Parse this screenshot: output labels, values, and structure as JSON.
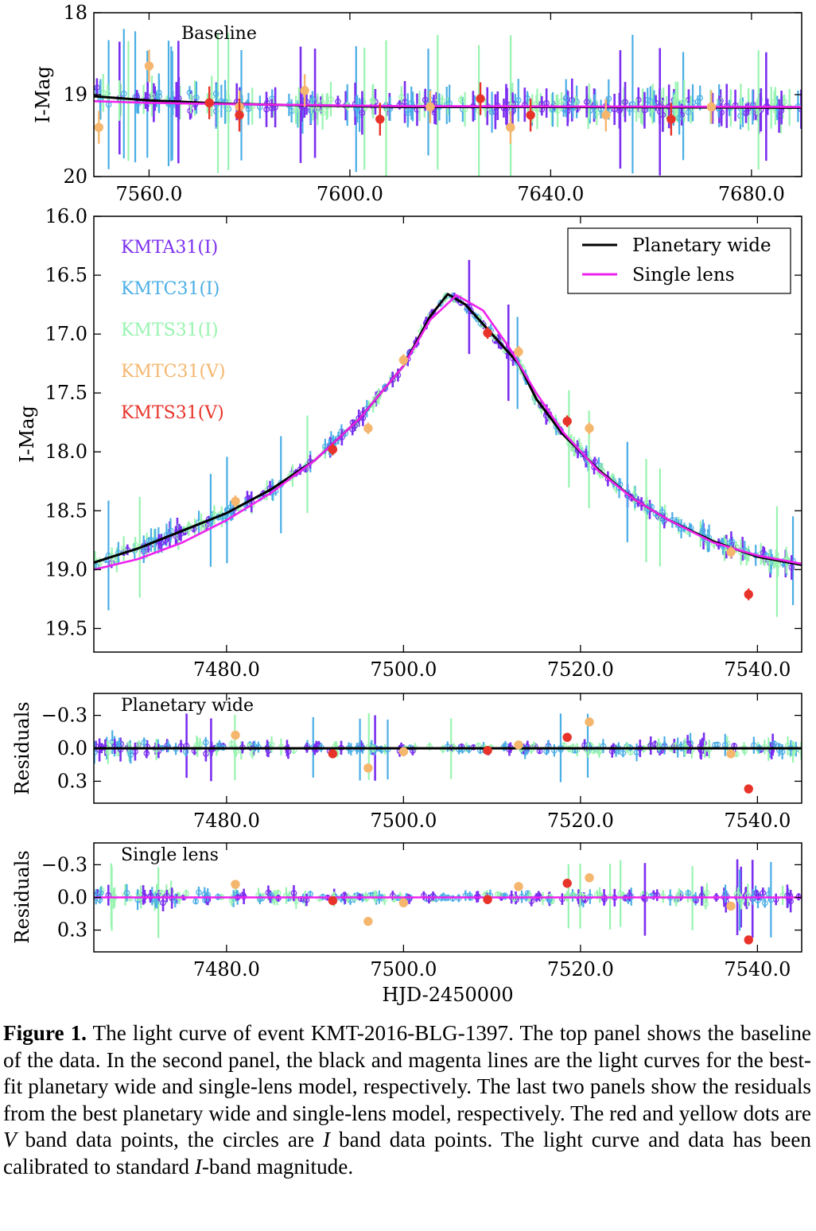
{
  "colors": {
    "KMTA31_I": "#7b2ff0",
    "KMTC31_I": "#4aaee6",
    "KMTS31_I": "#98f4b0",
    "KMTC31_V": "#f5b66e",
    "KMTS31_V": "#e8332a",
    "planetary_wide": "#000000",
    "single_lens": "#ee22ee"
  },
  "chart_data": [
    {
      "type": "scatter",
      "panel": "baseline",
      "annotation": "Baseline",
      "xlabel": "",
      "ylabel": "I-Mag",
      "xlim": [
        7549,
        7690
      ],
      "ylim": [
        20,
        18
      ],
      "y_inverted": true,
      "xticks": [
        "7560.0",
        "7600.0",
        "7640.0",
        "7680.0"
      ],
      "yticks": [
        "18",
        "19",
        "20"
      ],
      "series": [
        {
          "key": "KMTC31_V",
          "type": "point",
          "x": [
            7550,
            7560,
            7578,
            7591,
            7616,
            7632,
            7651,
            7672
          ],
          "y": [
            19.4,
            18.65,
            19.15,
            18.95,
            19.15,
            19.4,
            19.25,
            19.15
          ]
        },
        {
          "key": "KMTS31_V",
          "type": "point",
          "x": [
            7572,
            7578,
            7606,
            7626,
            7636,
            7664
          ],
          "y": [
            19.1,
            19.25,
            19.3,
            19.05,
            19.25,
            19.3
          ]
        },
        {
          "key": "planetary_wide",
          "type": "line",
          "x": [
            7549,
            7560,
            7575,
            7590,
            7610,
            7640,
            7690
          ],
          "y": [
            19.02,
            19.07,
            19.11,
            19.13,
            19.15,
            19.15,
            19.16
          ]
        },
        {
          "key": "single_lens",
          "type": "line",
          "x": [
            7549,
            7560,
            7580,
            7610,
            7690
          ],
          "y": [
            19.08,
            19.1,
            19.12,
            19.14,
            19.15
          ]
        }
      ]
    },
    {
      "type": "scatter",
      "panel": "light-curve",
      "xlabel": "",
      "ylabel": "I-Mag",
      "xlim": [
        7465,
        7545
      ],
      "ylim": [
        19.7,
        16.0
      ],
      "y_inverted": true,
      "xticks": [
        "7480.0",
        "7500.0",
        "7520.0",
        "7540.0"
      ],
      "yticks": [
        "16.0",
        "16.5",
        "17.0",
        "17.5",
        "18.0",
        "18.5",
        "19.0",
        "19.5"
      ],
      "datasets": [
        "KMTA31(I)",
        "KMTC31(I)",
        "KMTS31(I)",
        "KMTC31(V)",
        "KMTS31(V)"
      ],
      "legend": {
        "position": "top-right",
        "entries": [
          "Planetary wide",
          "Single lens"
        ]
      },
      "series": [
        {
          "key": "KMTC31_V",
          "type": "point",
          "x": [
            7481,
            7500,
            7496,
            7513,
            7521,
            7537
          ],
          "y": [
            18.42,
            17.22,
            17.8,
            17.15,
            17.8,
            18.85
          ]
        },
        {
          "key": "KMTS31_V",
          "type": "point",
          "x": [
            7492,
            7509.5,
            7518.5,
            7539
          ],
          "y": [
            17.98,
            16.99,
            17.74,
            19.21
          ]
        },
        {
          "key": "planetary_wide",
          "type": "line",
          "x": [
            7465,
            7470,
            7475,
            7480,
            7485,
            7490,
            7495,
            7500,
            7503,
            7505,
            7507,
            7510,
            7513,
            7515,
            7518,
            7522,
            7526,
            7530,
            7535,
            7540,
            7545
          ],
          "y": [
            18.94,
            18.82,
            18.67,
            18.52,
            18.32,
            18.07,
            17.72,
            17.27,
            16.85,
            16.66,
            16.75,
            17.0,
            17.25,
            17.55,
            17.85,
            18.15,
            18.4,
            18.58,
            18.76,
            18.89,
            18.96
          ]
        },
        {
          "key": "single_lens",
          "type": "line",
          "x": [
            7465,
            7470,
            7475,
            7480,
            7485,
            7490,
            7495,
            7500,
            7503,
            7506,
            7509,
            7512,
            7515,
            7518,
            7522,
            7526,
            7530,
            7535,
            7540,
            7545
          ],
          "y": [
            19.0,
            18.91,
            18.77,
            18.58,
            18.35,
            18.07,
            17.72,
            17.27,
            16.88,
            16.67,
            16.8,
            17.12,
            17.5,
            17.83,
            18.16,
            18.4,
            18.58,
            18.77,
            18.88,
            18.95
          ]
        }
      ]
    },
    {
      "type": "scatter",
      "panel": "residuals-planetary",
      "annotation": "Planetary wide",
      "xlabel": "",
      "ylabel": "Residuals",
      "xlim": [
        7465,
        7545
      ],
      "ylim": [
        0.5,
        -0.5
      ],
      "y_inverted": true,
      "xticks": [
        "7480.0",
        "7500.0",
        "7520.0",
        "7540.0"
      ],
      "yticks": [
        "−0.3",
        "0.0",
        "0.3"
      ],
      "series": [
        {
          "key": "KMTC31_V",
          "type": "point",
          "x": [
            7481,
            7496,
            7500,
            7513,
            7521,
            7537
          ],
          "y": [
            -0.12,
            0.18,
            0.03,
            -0.03,
            -0.24,
            0.05
          ]
        },
        {
          "key": "KMTS31_V",
          "type": "point",
          "x": [
            7492,
            7509.5,
            7518.5,
            7539
          ],
          "y": [
            0.05,
            0.02,
            -0.1,
            0.37
          ]
        },
        {
          "key": "planetary_wide",
          "type": "line",
          "x": [
            7465,
            7545
          ],
          "y": [
            0,
            0
          ]
        }
      ]
    },
    {
      "type": "scatter",
      "panel": "residuals-single",
      "annotation": "Single lens",
      "xlabel": "HJD-2450000",
      "ylabel": "Residuals",
      "xlim": [
        7465,
        7545
      ],
      "ylim": [
        0.5,
        -0.5
      ],
      "y_inverted": true,
      "xticks": [
        "7480.0",
        "7500.0",
        "7520.0",
        "7540.0"
      ],
      "yticks": [
        "−0.3",
        "0.0",
        "0.3"
      ],
      "series": [
        {
          "key": "KMTC31_V",
          "type": "point",
          "x": [
            7481,
            7496,
            7500,
            7513,
            7521,
            7537
          ],
          "y": [
            -0.12,
            0.22,
            0.05,
            -0.1,
            -0.18,
            0.08
          ]
        },
        {
          "key": "KMTS31_V",
          "type": "point",
          "x": [
            7492,
            7509.5,
            7518.5,
            7539
          ],
          "y": [
            0.03,
            0.02,
            -0.13,
            0.39
          ]
        },
        {
          "key": "single_lens",
          "type": "line",
          "x": [
            7465,
            7545
          ],
          "y": [
            0,
            0
          ]
        }
      ]
    }
  ],
  "caption": {
    "label": "Figure 1.",
    "part1": " The light curve of event KMT-2016-BLG-1397. The top panel shows the baseline of the data. In the second panel, the black and magenta lines are the light curves for the best-fit planetary wide and single-lens model, respectively. The last two panels show the residuals from the best planetary wide and single-lens model, respectively. The red and yellow dots are ",
    "V": "V",
    "part2": " band data points, the circles are ",
    "I": "I",
    "part3": " band data points. The light curve and data has been calibrated to standard ",
    "I2": "I",
    "part4": "-band magnitude."
  }
}
